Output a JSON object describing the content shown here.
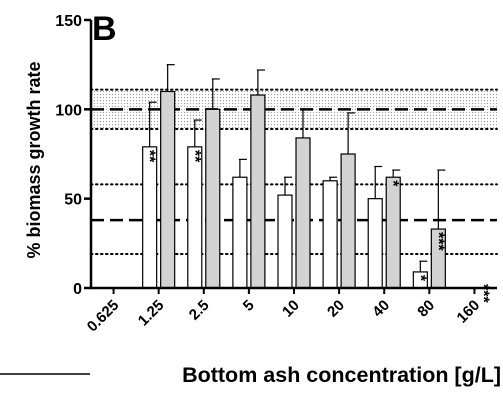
{
  "chart_data": {
    "type": "bar",
    "panel_label": "B",
    "xlabel": "Bottom ash concentration [g/L]",
    "ylabel": "% biomass growth rate",
    "ylim": [
      0,
      150
    ],
    "yticks": [
      0,
      50,
      100,
      150
    ],
    "categories": [
      "0.625",
      "1.25",
      "2.5",
      "5",
      "10",
      "20",
      "40",
      "80",
      "160"
    ],
    "series": [
      {
        "style": "white",
        "values": [
          null,
          79,
          79,
          62,
          52,
          60,
          50,
          9,
          null
        ],
        "errors": [
          null,
          25,
          15,
          10,
          10,
          2,
          18,
          6,
          null
        ],
        "annotations": [
          "",
          "**",
          "**",
          "",
          "",
          "",
          "",
          "*",
          ""
        ]
      },
      {
        "style": "gray",
        "values": [
          null,
          110,
          100,
          108,
          84,
          75,
          62,
          33,
          null
        ],
        "errors": [
          null,
          15,
          17,
          14,
          16,
          23,
          4,
          33,
          null
        ],
        "annotations": [
          "",
          "",
          "",
          "",
          "",
          "",
          "*",
          "***",
          "***"
        ]
      }
    ],
    "reference_lines": {
      "dashed": [
        100,
        38
      ],
      "dotted": [
        111,
        89,
        58,
        19
      ],
      "shaded_band": [
        89,
        111
      ]
    },
    "colors": {
      "white_bar": "#ffffff",
      "gray_bar": "#d3d3d3",
      "stroke": "#000000",
      "band": "#e3e3e3"
    }
  }
}
